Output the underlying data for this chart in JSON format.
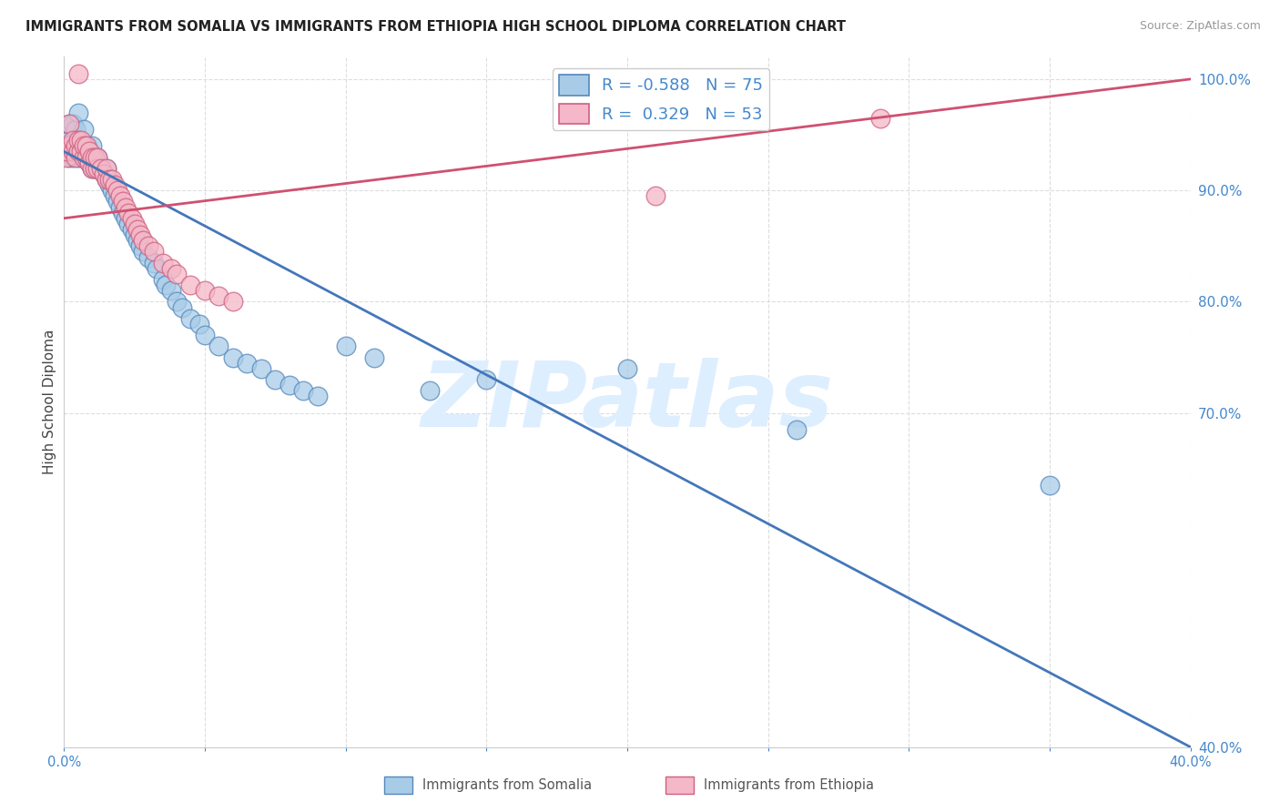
{
  "title": "IMMIGRANTS FROM SOMALIA VS IMMIGRANTS FROM ETHIOPIA HIGH SCHOOL DIPLOMA CORRELATION CHART",
  "source": "Source: ZipAtlas.com",
  "ylabel": "High School Diploma",
  "legend_somalia": "Immigrants from Somalia",
  "legend_ethiopia": "Immigrants from Ethiopia",
  "r_somalia": -0.588,
  "n_somalia": 75,
  "r_ethiopia": 0.329,
  "n_ethiopia": 53,
  "color_somalia": "#a8cce8",
  "color_ethiopia": "#f4b8c8",
  "edge_somalia": "#5588bb",
  "edge_ethiopia": "#d06080",
  "line_somalia": "#4477bb",
  "line_ethiopia": "#d05070",
  "xmin": 0.0,
  "xmax": 0.4,
  "ymin": 0.4,
  "ymax": 1.02,
  "background_color": "#ffffff",
  "grid_color": "#dddddd",
  "watermark_text": "ZIPatlas",
  "watermark_color": "#ddeeff",
  "somalia_line_x": [
    0.0,
    0.4
  ],
  "somalia_line_y": [
    0.935,
    0.4
  ],
  "ethiopia_line_x": [
    0.0,
    0.4
  ],
  "ethiopia_line_y": [
    0.875,
    1.0
  ],
  "somalia_x": [
    0.001,
    0.001,
    0.001,
    0.002,
    0.002,
    0.002,
    0.002,
    0.003,
    0.003,
    0.003,
    0.004,
    0.004,
    0.004,
    0.005,
    0.005,
    0.005,
    0.005,
    0.006,
    0.006,
    0.007,
    0.007,
    0.007,
    0.008,
    0.008,
    0.009,
    0.009,
    0.01,
    0.01,
    0.01,
    0.011,
    0.012,
    0.012,
    0.013,
    0.014,
    0.015,
    0.015,
    0.016,
    0.017,
    0.018,
    0.019,
    0.02,
    0.021,
    0.022,
    0.023,
    0.024,
    0.025,
    0.026,
    0.027,
    0.028,
    0.03,
    0.032,
    0.033,
    0.035,
    0.036,
    0.038,
    0.04,
    0.042,
    0.045,
    0.048,
    0.05,
    0.055,
    0.06,
    0.065,
    0.07,
    0.075,
    0.08,
    0.085,
    0.09,
    0.1,
    0.11,
    0.13,
    0.15,
    0.2,
    0.26,
    0.35
  ],
  "somalia_y": [
    0.935,
    0.94,
    0.945,
    0.93,
    0.94,
    0.945,
    0.96,
    0.93,
    0.935,
    0.96,
    0.935,
    0.945,
    0.955,
    0.93,
    0.935,
    0.94,
    0.97,
    0.93,
    0.94,
    0.93,
    0.94,
    0.955,
    0.93,
    0.94,
    0.925,
    0.935,
    0.92,
    0.93,
    0.94,
    0.92,
    0.92,
    0.93,
    0.92,
    0.915,
    0.91,
    0.92,
    0.905,
    0.9,
    0.895,
    0.89,
    0.885,
    0.88,
    0.875,
    0.87,
    0.865,
    0.86,
    0.855,
    0.85,
    0.845,
    0.84,
    0.835,
    0.83,
    0.82,
    0.815,
    0.81,
    0.8,
    0.795,
    0.785,
    0.78,
    0.77,
    0.76,
    0.75,
    0.745,
    0.74,
    0.73,
    0.725,
    0.72,
    0.715,
    0.76,
    0.75,
    0.72,
    0.73,
    0.74,
    0.685,
    0.635
  ],
  "ethiopia_x": [
    0.001,
    0.001,
    0.002,
    0.002,
    0.003,
    0.003,
    0.004,
    0.004,
    0.005,
    0.005,
    0.006,
    0.006,
    0.007,
    0.007,
    0.008,
    0.008,
    0.009,
    0.009,
    0.01,
    0.01,
    0.011,
    0.011,
    0.012,
    0.012,
    0.013,
    0.014,
    0.015,
    0.015,
    0.016,
    0.017,
    0.018,
    0.019,
    0.02,
    0.021,
    0.022,
    0.023,
    0.024,
    0.025,
    0.026,
    0.027,
    0.028,
    0.03,
    0.032,
    0.035,
    0.038,
    0.04,
    0.045,
    0.05,
    0.055,
    0.06,
    0.21,
    0.29,
    0.005
  ],
  "ethiopia_y": [
    0.93,
    0.935,
    0.94,
    0.96,
    0.935,
    0.945,
    0.93,
    0.94,
    0.935,
    0.945,
    0.935,
    0.945,
    0.93,
    0.94,
    0.93,
    0.94,
    0.925,
    0.935,
    0.92,
    0.93,
    0.92,
    0.93,
    0.92,
    0.93,
    0.92,
    0.915,
    0.91,
    0.92,
    0.91,
    0.91,
    0.905,
    0.9,
    0.895,
    0.89,
    0.885,
    0.88,
    0.875,
    0.87,
    0.865,
    0.86,
    0.855,
    0.85,
    0.845,
    0.835,
    0.83,
    0.825,
    0.815,
    0.81,
    0.805,
    0.8,
    0.895,
    0.965,
    1.005
  ]
}
